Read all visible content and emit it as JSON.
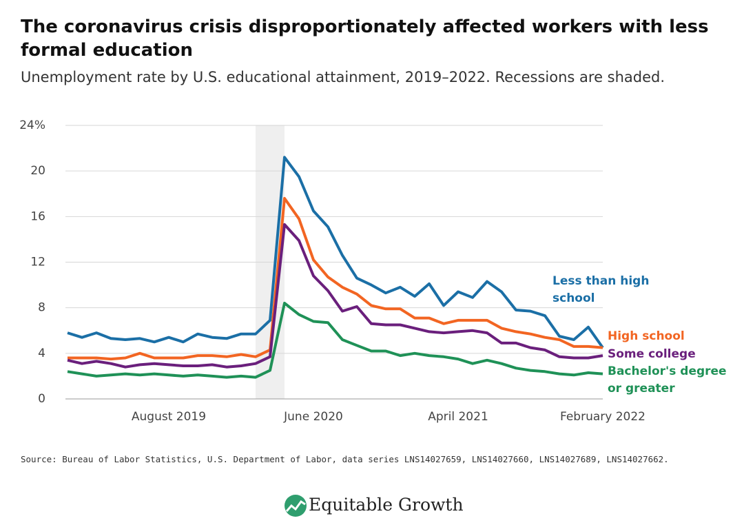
{
  "chart_data": {
    "type": "line",
    "title": "The coronavirus crisis disproportionately affected workers with less formal education",
    "subtitle": "Unemployment rate by U.S. educational attainment, 2019–2022. Recessions are shaded.",
    "source": "Source: Bureau of Labor Statistics, U.S. Department of Labor, data series LNS14027659, LNS14027660, LNS14027689, LNS14027662.",
    "brand": "Equitable Growth",
    "categories": [
      null,
      null,
      null,
      null,
      null,
      null,
      null,
      "August 2019",
      null,
      null,
      null,
      null,
      null,
      null,
      null,
      null,
      null,
      "June 2020",
      null,
      null,
      null,
      null,
      null,
      null,
      null,
      null,
      null,
      "April 2021",
      null,
      null,
      null,
      null,
      null,
      null,
      null,
      null,
      null,
      "February 2022"
    ],
    "shaded": [
      [
        13,
        15
      ]
    ],
    "ylim": [
      0,
      24
    ],
    "yticks": [
      0,
      4,
      8,
      12,
      16,
      20,
      {
        "value": 24,
        "label": "24%"
      }
    ],
    "grid": true,
    "series": [
      {
        "name": "Less than high school",
        "color": "#1b6fa6",
        "values": [
          5.8,
          5.4,
          5.8,
          5.3,
          5.2,
          5.3,
          5.0,
          5.4,
          5.0,
          5.7,
          5.4,
          5.3,
          5.7,
          5.7,
          6.9,
          21.2,
          19.5,
          16.5,
          15.1,
          12.6,
          10.6,
          10.0,
          9.3,
          9.8,
          9.0,
          10.1,
          8.2,
          9.4,
          8.9,
          10.3,
          9.4,
          7.8,
          7.7,
          7.3,
          5.5,
          5.2,
          6.3,
          4.5
        ]
      },
      {
        "name": "High school",
        "color": "#f26522",
        "values": [
          3.6,
          3.6,
          3.6,
          3.5,
          3.6,
          4.0,
          3.6,
          3.6,
          3.6,
          3.8,
          3.8,
          3.7,
          3.9,
          3.7,
          4.3,
          17.6,
          15.8,
          12.2,
          10.7,
          9.8,
          9.2,
          8.2,
          7.9,
          7.9,
          7.1,
          7.1,
          6.6,
          6.9,
          6.9,
          6.9,
          6.2,
          5.9,
          5.7,
          5.4,
          5.2,
          4.6,
          4.6,
          4.5
        ]
      },
      {
        "name": "Some college",
        "color": "#6a1f7c",
        "values": [
          3.4,
          3.1,
          3.3,
          3.1,
          2.8,
          3.0,
          3.1,
          3.0,
          2.9,
          2.9,
          3.0,
          2.8,
          2.9,
          3.1,
          3.7,
          15.3,
          13.9,
          10.8,
          9.5,
          7.7,
          8.1,
          6.6,
          6.5,
          6.5,
          6.2,
          5.9,
          5.8,
          5.9,
          6.0,
          5.8,
          4.9,
          4.9,
          4.5,
          4.3,
          3.7,
          3.6,
          3.6,
          3.8
        ]
      },
      {
        "name": "Bachelor's degree or greater",
        "color": "#1f9157",
        "values": [
          2.4,
          2.2,
          2.0,
          2.1,
          2.2,
          2.1,
          2.2,
          2.1,
          2.0,
          2.1,
          2.0,
          1.9,
          2.0,
          1.9,
          2.5,
          8.4,
          7.4,
          6.8,
          6.7,
          5.2,
          4.7,
          4.2,
          4.2,
          3.8,
          4.0,
          3.8,
          3.7,
          3.5,
          3.1,
          3.4,
          3.1,
          2.7,
          2.5,
          2.4,
          2.2,
          2.1,
          2.3,
          2.2
        ]
      }
    ]
  }
}
